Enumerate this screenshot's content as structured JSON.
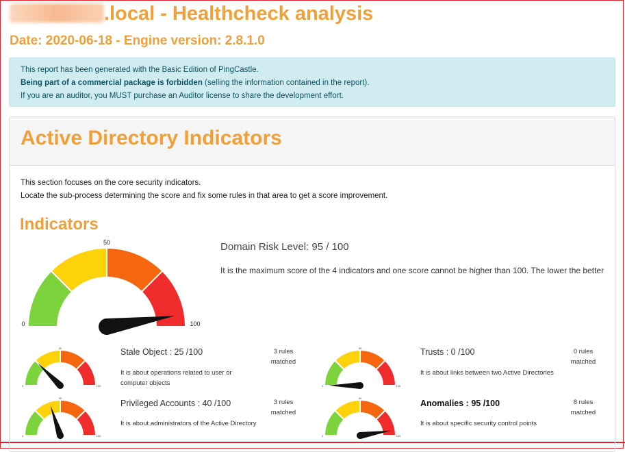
{
  "header": {
    "title_suffix": ".local - Healthcheck analysis",
    "date_line": "Date: 2020-06-18 - Engine version: 2.8.1.0"
  },
  "notice": {
    "line1": "This report has been generated with the Basic Edition of PingCastle.",
    "line2_bold": "Being part of a commercial package is forbidden",
    "line2_rest": " (selling the information contained in the report).",
    "line3": "If you are an auditor, you MUST purchase an Auditor license to share the development effort."
  },
  "section": {
    "title": "Active Directory Indicators",
    "intro1": "This section focuses on the core security indicators.",
    "intro2": "Locate the sub-process determining the score and fix some rules in that area to get a score improvement."
  },
  "indicators": {
    "title": "Indicators",
    "risk_level": "Domain Risk Level: 95 / 100",
    "risk_value": 95,
    "risk_desc": "It is the maximum score of the 4 indicators and one score cannot be higher than 100. The lower the better",
    "gauge_min": "0",
    "gauge_mid": "50",
    "gauge_max": "100",
    "items": [
      {
        "name": "Stale Object : 25 /100",
        "value": 25,
        "desc": "It is about operations related to user or computer objects",
        "rules": "3 rules matched"
      },
      {
        "name": "Trusts : 0 /100",
        "value": 0,
        "desc": "It is about links between two Active Directories",
        "rules": "0 rules matched"
      },
      {
        "name": "Privileged Accounts : 40 /100",
        "value": 40,
        "desc": "It is about administrators of the Active Directory",
        "rules": "3 rules matched"
      },
      {
        "name": "Anomalies : 95 /100",
        "value": 95,
        "desc": "It is about specific security control points",
        "rules": "8 rules matched"
      }
    ]
  },
  "colors": {
    "accent": "#f0a03a",
    "green": "#7cd33c",
    "yellow": "#fdd20a",
    "orange": "#f6660e",
    "red": "#ef2b2b",
    "needle": "#111111"
  }
}
